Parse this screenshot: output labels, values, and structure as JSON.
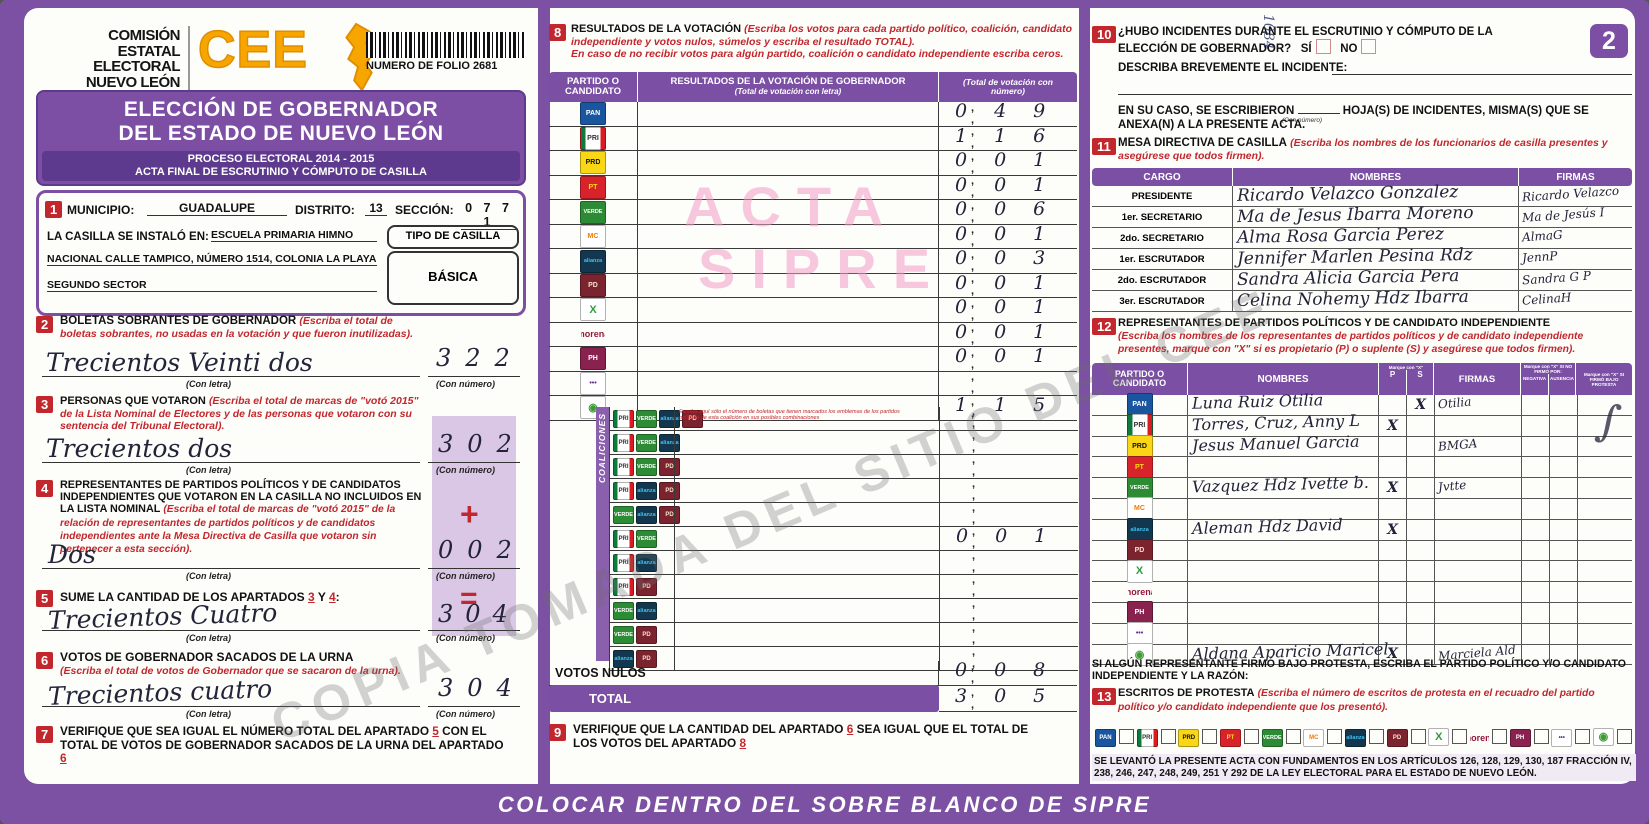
{
  "page": {
    "footer_banner": "COLOCAR DENTRO DEL SOBRE BLANCO DE SIPRE",
    "page_badge": "2",
    "watermark_diagonal": "COPIA TOMADA DEL SITIO DEL CEE",
    "watermark_line1": "ACTA",
    "watermark_line2": "SIPRE",
    "vertical_note": "1084"
  },
  "labels": {
    "con_letra": "(Con letra)",
    "con_numero": "(Con número)",
    "ticks": ", ,"
  },
  "colors": {
    "purple": "#7c51a3",
    "dark_purple": "#5e3a8e",
    "badge_red": "#c1272d",
    "shade": "#c9abd9",
    "watermark_pink": "#f5bcd3"
  },
  "header": {
    "org1": "COMISIÓN",
    "org2": "ESTATAL",
    "org3": "ELECTORAL",
    "org4": "NUEVO LEÓN",
    "logo": "CEE",
    "folio": "NUMERO DE FOLIO 2681",
    "title1": "ELECCIÓN DE GOBERNADOR",
    "title2": "DEL ESTADO DE NUEVO LEÓN",
    "sub1": "PROCESO ELECTORAL  2014 - 2015",
    "sub2": "ACTA FINAL DE ESCRUTINIO Y CÓMPUTO DE CASILLA"
  },
  "section1": {
    "num": "1",
    "municipio_label": "MUNICIPIO:",
    "municipio": "GUADALUPE",
    "distrito_label": "DISTRITO:",
    "distrito": "13",
    "seccion_label": "SECCIÓN:",
    "seccion": "0 7 7 1",
    "instalada_label": "LA CASILLA SE INSTALÓ EN:",
    "lugar1": "ESCUELA PRIMARIA HIMNO",
    "lugar2": "NACIONAL CALLE TAMPICO, NÚMERO 1514, COLONIA LA PLAYA",
    "lugar3": "SEGUNDO SECTOR",
    "tipo_label": "TIPO DE CASILLA",
    "tipo": "BÁSICA"
  },
  "section2": {
    "num": "2",
    "title": "BOLETAS SOBRANTES DE GOBERNADOR",
    "note": "(Escriba el total de boletas sobrantes, no usadas en la votación y que fueron inutilizadas).",
    "letra": "Trecientos Veinti dos",
    "numero": "322"
  },
  "section3": {
    "num": "3",
    "title": "PERSONAS QUE VOTARON",
    "note": "(Escriba el total de marcas de \"votó 2015\" de la Lista Nominal de Electores y de las personas que votaron con su sentencia del Tribunal Electoral).",
    "letra": "Trecientos dos",
    "numero": "302"
  },
  "section4": {
    "num": "4",
    "title": "REPRESENTANTES DE PARTIDOS POLÍTICOS Y DE CANDIDATOS INDEPENDIENTES QUE VOTARON EN LA CASILLA NO INCLUIDOS EN LA LISTA NOMINAL",
    "note": "(Escriba el total de marcas de \"votó 2015\" de la relación de representantes de partidos políticos y de candidatos independientes ante la Mesa Directiva de Casilla que votaron sin pertenecer a esta sección).",
    "letra": "Dos",
    "numero": "002",
    "plus": "+"
  },
  "section5": {
    "num": "5",
    "t1": "SUME LA CANTIDAD DE LOS APARTADOS",
    "ref1": "3",
    "t2": "Y",
    "ref2": "4",
    "t3": ":",
    "letra": "Trecientos Cuatro",
    "numero": "304",
    "equals": "="
  },
  "section6": {
    "num": "6",
    "title": "VOTOS DE GOBERNADOR SACADOS DE LA URNA",
    "note": "(Escriba el total de votos de Gobernador que se sacaron de la urna).",
    "letra": "Trecientos cuatro",
    "numero": "304"
  },
  "section7": {
    "num": "7",
    "t1": "VERIFIQUE QUE SEA IGUAL EL NÚMERO TOTAL DEL APARTADO",
    "ref1": "5",
    "t2": "CON EL TOTAL DE VOTOS DE GOBERNADOR SACADOS DE LA URNA DEL APARTADO",
    "ref2": "6"
  },
  "section8": {
    "num": "8",
    "title": "RESULTADOS DE LA VOTACIÓN",
    "note1": "(Escriba los votos para cada partido político, coalición, candidato independiente y votos nulos, súmelos y escriba el resultado TOTAL).",
    "note2": "En caso de no recibir votos para algún partido, coalición o candidato independiente escriba ceros.",
    "col1": "PARTIDO O CANDIDATO",
    "col2a": "RESULTADOS DE LA VOTACIÓN DE GOBERNADOR",
    "col2b": "(Total de votación con letra)",
    "col3": "(Total de votación con número)",
    "coaliciones_label": "COALICIONES",
    "rows": [
      {
        "party": "pan",
        "value": "049"
      },
      {
        "party": "pri",
        "value": "116"
      },
      {
        "party": "prd",
        "value": "001"
      },
      {
        "party": "pt",
        "value": "001"
      },
      {
        "party": "verde",
        "value": "006"
      },
      {
        "party": "mc",
        "value": "001"
      },
      {
        "party": "alianza",
        "value": "003"
      },
      {
        "party": "democrata",
        "value": "001"
      },
      {
        "party": "cruzada",
        "value": "001"
      },
      {
        "party": "morena",
        "value": "001"
      },
      {
        "party": "humanista",
        "value": "001"
      },
      {
        "party": "encuentro",
        "value": ""
      },
      {
        "party": "independiente",
        "value": "115"
      }
    ],
    "coalition_note": "Escriba aquí sólo el número de boletas que tienen marcados los emblemas de los partidos políticos de esta coalición en sus posibles combinaciones",
    "coalitions": [
      {
        "parties": [
          "pri",
          "verde",
          "alianza",
          "democrata"
        ],
        "value": "",
        "note": "Escriba aquí sólo el número de boletas que tienen marcados los emblemas de los partidos políticos de esta coalición en sus posibles combinaciones"
      },
      {
        "parties": [
          "pri",
          "verde",
          "alianza"
        ],
        "value": ""
      },
      {
        "parties": [
          "pri",
          "verde",
          "democrata"
        ],
        "value": ""
      },
      {
        "parties": [
          "pri",
          "alianza",
          "democrata"
        ],
        "value": ""
      },
      {
        "parties": [
          "verde",
          "alianza",
          "democrata"
        ],
        "value": ""
      },
      {
        "parties": [
          "pri",
          "verde"
        ],
        "value": "001"
      },
      {
        "parties": [
          "pri",
          "alianza"
        ],
        "value": ""
      },
      {
        "parties": [
          "pri",
          "democrata"
        ],
        "value": ""
      },
      {
        "parties": [
          "verde",
          "alianza"
        ],
        "value": ""
      },
      {
        "parties": [
          "verde",
          "democrata"
        ],
        "value": ""
      },
      {
        "parties": [
          "alianza",
          "democrata"
        ],
        "value": ""
      }
    ],
    "votos_nulos_label": "VOTOS NULOS",
    "votos_nulos": "008",
    "total_label": "TOTAL",
    "total": "305"
  },
  "section9": {
    "num": "9",
    "t1": "VERIFIQUE QUE LA CANTIDAD DEL APARTADO",
    "ref1": "6",
    "t2": "SEA IGUAL QUE EL TOTAL DE LOS VOTOS DEL APARTADO",
    "ref2": "8"
  },
  "section10": {
    "num": "10",
    "q1": "¿HUBO INCIDENTES DURANTE EL ESCRUTINIO Y CÓMPUTO DE LA",
    "q2": "ELECCIÓN DE GOBERNADOR?",
    "si": "SÍ",
    "no": "NO",
    "describe": "DESCRIBA BREVEMENTE EL INCIDENTE:",
    "caso1": "EN SU CASO, SE ESCRIBIERON",
    "con_numero": "(Con número)",
    "caso2": "HOJA(S) DE INCIDENTES, MISMA(S) QUE SE",
    "caso3": "ANEXA(N) A LA PRESENTE ACTA."
  },
  "section11": {
    "num": "11",
    "title": "MESA DIRECTIVA DE CASILLA",
    "note": "(Escriba los nombres de los funcionarios de casilla presentes y asegúrese que todos firmen).",
    "col_cargo": "CARGO",
    "col_nombres": "NOMBRES",
    "col_firmas": "FIRMAS",
    "rows": [
      {
        "cargo": "PRESIDENTE",
        "nombre": "Ricardo Velazco Gonzalez",
        "firma": "Ricardo Velazco"
      },
      {
        "cargo": "1er. SECRETARIO",
        "nombre": "Ma de Jesus Ibarra Moreno",
        "firma": "Ma de Jesús I"
      },
      {
        "cargo": "2do. SECRETARIO",
        "nombre": "Alma Rosa Garcia Perez",
        "firma": "AlmaG"
      },
      {
        "cargo": "1er. ESCRUTADOR",
        "nombre": "Jennifer Marlen Pesina Rdz",
        "firma": "JennP"
      },
      {
        "cargo": "2do. ESCRUTADOR",
        "nombre": "Sandra Alicia Garcia Pera",
        "firma": "Sandra G P"
      },
      {
        "cargo": "3er. ESCRUTADOR",
        "nombre": "Celina Nohemy Hdz Ibarra",
        "firma": "CelinaH"
      }
    ]
  },
  "section12": {
    "num": "12",
    "title": "REPRESENTANTES DE PARTIDOS POLÍTICOS Y DE CANDIDATO INDEPENDIENTE",
    "note": "(Escriba los nombres de los representantes de partidos políticos y de candidato independiente presentes, marque con \"X\" si es propietario (P) o suplente (S) y asegúrese que todos firmen).",
    "col_partido": "PARTIDO O CANDIDATO",
    "col_nombres": "NOMBRES",
    "col_marque": "Marque con \"X\"",
    "col_p": "P",
    "col_s": "S",
    "col_firmas": "FIRMAS",
    "col_nofirmo": "Marque con \"X\" SI NO FIRMÓ POR:",
    "col_negativa": "NEGATIVA",
    "col_ausencia": "AUSENCIA",
    "col_protesta": "Marque con \"X\" SI FIRMÓ BAJO PROTESTA",
    "rows": [
      {
        "party": "pan",
        "nombre": "Luna Ruiz Otilia",
        "p": "",
        "s": "X",
        "firma": "Otilia",
        "neg": "",
        "aus": "",
        "prot": ""
      },
      {
        "party": "pri",
        "nombre": "Torres, Cruz, Anny L",
        "p": "X",
        "s": "",
        "firma": "",
        "neg": "",
        "aus": "",
        "prot": ""
      },
      {
        "party": "prd",
        "nombre": "Jesus Manuel Garcia",
        "p": "",
        "s": "",
        "firma": "BMGA",
        "neg": "",
        "aus": "",
        "prot": ""
      },
      {
        "party": "pt",
        "nombre": "",
        "p": "",
        "s": "",
        "firma": "",
        "neg": "",
        "aus": "",
        "prot": ""
      },
      {
        "party": "verde",
        "nombre": "Vazquez Hdz Ivette b.",
        "p": "X",
        "s": "",
        "firma": "Jvtte",
        "neg": "",
        "aus": "",
        "prot": ""
      },
      {
        "party": "mc",
        "nombre": "",
        "p": "",
        "s": "",
        "firma": "",
        "neg": "",
        "aus": "",
        "prot": ""
      },
      {
        "party": "alianza",
        "nombre": "Aleman Hdz David",
        "p": "X",
        "s": "",
        "firma": "",
        "neg": "",
        "aus": "",
        "prot": ""
      },
      {
        "party": "democrata",
        "nombre": "",
        "p": "",
        "s": "",
        "firma": "",
        "neg": "",
        "aus": "",
        "prot": ""
      },
      {
        "party": "cruzada",
        "nombre": "",
        "p": "",
        "s": "",
        "firma": "",
        "neg": "",
        "aus": "",
        "prot": ""
      },
      {
        "party": "morena",
        "nombre": "",
        "p": "",
        "s": "",
        "firma": "",
        "neg": "",
        "aus": "",
        "prot": ""
      },
      {
        "party": "humanista",
        "nombre": "",
        "p": "",
        "s": "",
        "firma": "",
        "neg": "",
        "aus": "",
        "prot": ""
      },
      {
        "party": "encuentro",
        "nombre": "",
        "p": "",
        "s": "",
        "firma": "",
        "neg": "",
        "aus": "",
        "prot": ""
      },
      {
        "party": "independiente",
        "nombre": "Aldana Aparicio Maricel",
        "p": "X",
        "s": "",
        "firma": "Marciela Ald",
        "neg": "",
        "aus": "",
        "prot": ""
      }
    ]
  },
  "protesta_text": "SI ALGÚN REPRESENTANTE FIRMÓ BAJO PROTESTA, ESCRIBA EL PARTIDO POLÍTICO Y/O CANDIDATO INDEPENDIENTE Y LA RAZÓN:",
  "section13": {
    "num": "13",
    "title": "ESCRITOS DE PROTESTA",
    "note": "(Escriba el número de escritos de protesta en el recuadro del partido político y/o candidato independiente que los presentó).",
    "logos": [
      "pan",
      "pri",
      "prd",
      "pt",
      "verde",
      "mc",
      "alianza",
      "democrata",
      "cruzada",
      "morena",
      "humanista",
      "encuentro",
      "independiente"
    ]
  },
  "legal_text": "SE LEVANTÓ LA PRESENTE ACTA CON FUNDAMENTOS EN LOS ARTÍCULOS 126, 128, 129, 130, 187 FRACCIÓN IV, 238, 246, 247, 248, 249, 251 Y 292 DE LA LEY ELECTORAL PARA EL ESTADO DE NUEVO LEÓN.",
  "party_styles": {
    "pan": {
      "name": "Partido Acción Nacional",
      "label": "PAN",
      "bg": "#1a56a0",
      "fg": "#ffffff"
    },
    "pri": {
      "name": "Partido Revolucionario Institucional",
      "label": "PRI",
      "bg": "#ffffff",
      "fg": "#333333"
    },
    "prd": {
      "name": "Partido de la Revolución Democrática",
      "label": "PRD",
      "bg": "#f9d616",
      "fg": "#111111"
    },
    "pt": {
      "name": "Partido del Trabajo",
      "label": "PT",
      "bg": "#d8232a",
      "fg": "#ffd90f"
    },
    "verde": {
      "name": "Partido Verde Ecologista",
      "label": "VERDE",
      "bg": "#2e8b35",
      "fg": "#ffffff"
    },
    "mc": {
      "name": "Movimiento Ciudadano",
      "label": "MC",
      "bg": "#ffffff",
      "fg": "#ef7d00"
    },
    "alianza": {
      "name": "Nueva Alianza",
      "label": "alianza",
      "bg": "#12374e",
      "fg": "#3fc1f0"
    },
    "democrata": {
      "name": "Partido Demócrata",
      "label": "PD",
      "bg": "#7c2330",
      "fg": "#f5e0c8"
    },
    "cruzada": {
      "name": "Cruzada Ciudadana",
      "label": "X",
      "bg": "#ffffff",
      "fg": "#2e9e3e"
    },
    "morena": {
      "name": "Morena",
      "label": "morena",
      "bg": "transparent",
      "fg": "#95173d"
    },
    "humanista": {
      "name": "Partido Humanista",
      "label": "PH",
      "bg": "#8a2250",
      "fg": "#ffffff"
    },
    "encuentro": {
      "name": "Encuentro Social",
      "label": "•••",
      "bg": "#ffffff",
      "fg": "#5b2d8e"
    },
    "independiente": {
      "name": "Candidato Independiente",
      "label": "◉",
      "bg": "#ffffff",
      "fg": "#3f9c35"
    }
  }
}
